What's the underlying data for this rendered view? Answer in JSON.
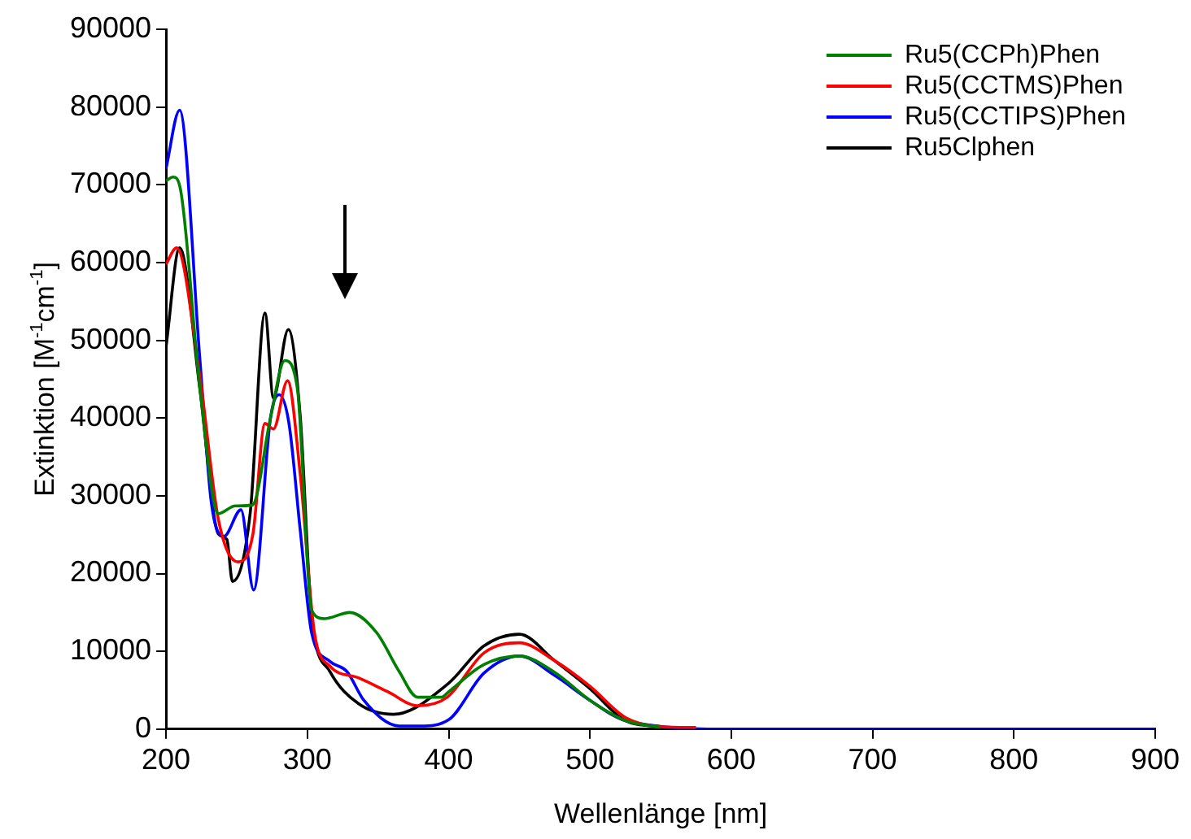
{
  "chart_data": {
    "type": "line",
    "xlabel": "Wellenlänge [nm]",
    "ylabel": "Extinktion [M$^{-1}$cm$^{-1}$]",
    "xlim": [
      200,
      900
    ],
    "xticks": [
      200,
      300,
      400,
      500,
      600,
      700,
      800,
      900
    ],
    "ylim": [
      0,
      90000
    ],
    "yticks": [
      0,
      10000,
      20000,
      30000,
      40000,
      50000,
      60000,
      70000,
      80000,
      90000
    ],
    "grid": false,
    "legend": "top right",
    "marker": "none",
    "line_style": "solid",
    "series": [
      {
        "name": "Ru5(CCPh)Phen",
        "color": "#008000",
        "x": [
          200,
          205,
          210,
          224,
          237,
          249,
          261,
          274,
          284,
          293,
          303,
          312,
          330,
          349,
          365,
          378,
          395,
          400,
          425,
          450,
          475,
          500,
          525,
          550
        ],
        "values": [
          70500,
          71000,
          69600,
          43700,
          27700,
          28700,
          28800,
          40100,
          47400,
          43700,
          15300,
          14200,
          15000,
          12400,
          7400,
          4100,
          4100,
          4800,
          8300,
          9400,
          7300,
          3700,
          1100,
          200
        ]
      },
      {
        "name": "Ru5(CCTMS)Phen",
        "color": "#ff0000",
        "x": [
          200,
          207.5,
          224,
          237,
          251,
          261.5,
          270,
          276,
          286,
          295,
          305,
          316,
          336,
          357,
          378,
          399,
          425,
          450,
          475,
          500,
          525,
          550,
          575
        ],
        "values": [
          59800,
          61900,
          45200,
          27000,
          21500,
          25100,
          39300,
          38600,
          44800,
          32700,
          12400,
          8100,
          6600,
          4800,
          3000,
          4100,
          9800,
          11100,
          8800,
          5500,
          1500,
          300,
          200
        ]
      },
      {
        "name": "Ru5(CCTIPS)Phen",
        "color": "#0000ff",
        "x": [
          200,
          209.6,
          224,
          232,
          241,
          253,
          262,
          274,
          280,
          287,
          295,
          303,
          316,
          328,
          340,
          365,
          380,
          400,
          425,
          450,
          475,
          500,
          525,
          600,
          700,
          800,
          900
        ],
        "values": [
          72100,
          79600,
          47400,
          29200,
          24800,
          28200,
          17900,
          40100,
          43000,
          39300,
          25500,
          12400,
          8700,
          7400,
          3700,
          400,
          400,
          1200,
          7200,
          9400,
          6900,
          3700,
          1100,
          0,
          0,
          0,
          0
        ]
      },
      {
        "name": "Ru5Clphen",
        "color": "#000000",
        "x": [
          200,
          209.6,
          224,
          237,
          243,
          247,
          259.5,
          270,
          276,
          286.5,
          295,
          303,
          316,
          336,
          361,
          400,
          425,
          450,
          475,
          500,
          525,
          550
        ],
        "values": [
          49200,
          61900,
          43700,
          25100,
          24400,
          19000,
          27700,
          53500,
          42600,
          51400,
          40100,
          14600,
          7400,
          3300,
          1900,
          5900,
          10700,
          12200,
          8800,
          5200,
          1100,
          300
        ]
      }
    ]
  }
}
